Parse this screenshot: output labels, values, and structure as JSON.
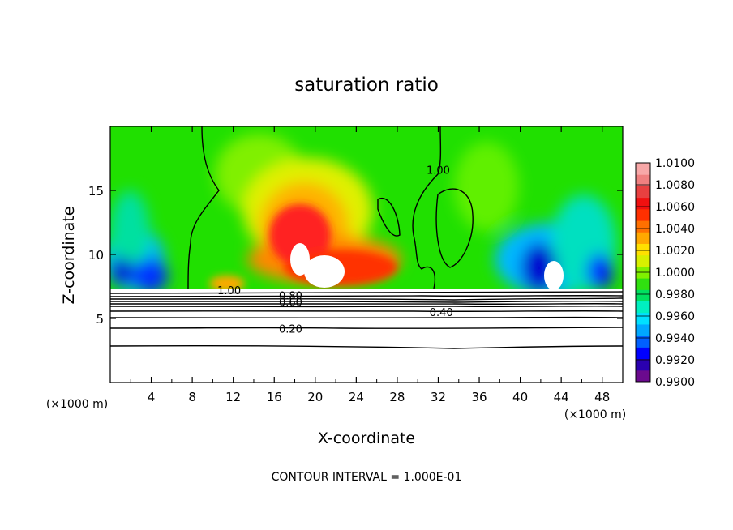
{
  "chart_data": {
    "type": "heatmap",
    "title": "saturation ratio",
    "xlabel": "X-coordinate",
    "ylabel": "Z-coordinate",
    "x_unit": "(×1000 m)",
    "x_unit_left": "(×1000 m)",
    "xlim": [
      0,
      50
    ],
    "ylim": [
      0,
      20
    ],
    "xticks": [
      4,
      8,
      12,
      16,
      20,
      24,
      28,
      32,
      36,
      40,
      44,
      48
    ],
    "yticks": [
      5,
      10,
      15
    ],
    "footer": "CONTOUR INTERVAL = 1.000E-01",
    "colorbar": {
      "min": 0.99,
      "max": 1.01,
      "tick_labels": [
        "1.0100",
        "1.0080",
        "1.0060",
        "1.0040",
        "1.0020",
        "1.0000",
        "0.9980",
        "0.9960",
        "0.9940",
        "0.9920",
        "0.9900"
      ],
      "colors": [
        "#6b0a8e",
        "#2a00b0",
        "#0000ff",
        "#0060ff",
        "#00a8ff",
        "#00e0ff",
        "#00f0c0",
        "#00e060",
        "#30e010",
        "#80f000",
        "#d8f000",
        "#ffe000",
        "#ffa800",
        "#ff7000",
        "#ff3000",
        "#f01010",
        "#e84040",
        "#f08080",
        "#f8a8a8"
      ]
    },
    "contour_labels": [
      {
        "text": "1.00",
        "x": 11.6,
        "y": 7.2
      },
      {
        "text": "1.00",
        "x": 32.0,
        "y": 16.6
      },
      {
        "text": "0.80",
        "x": 17.6,
        "y": 6.8
      },
      {
        "text": "0.60",
        "x": 17.6,
        "y": 6.3
      },
      {
        "text": "0.40",
        "x": 32.3,
        "y": 5.5
      },
      {
        "text": "0.20",
        "x": 17.6,
        "y": 4.2
      }
    ]
  }
}
